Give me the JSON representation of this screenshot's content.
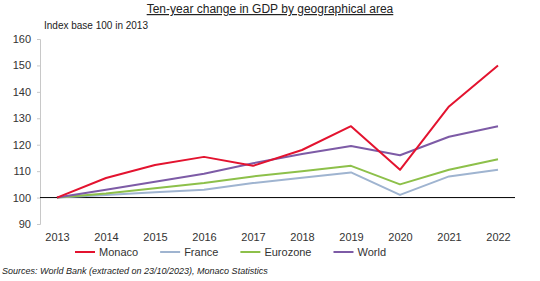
{
  "chart_data": {
    "type": "line",
    "title": "Ten-year change in GDP by geographical area",
    "subtitle": "Index base 100 in 2013",
    "source": "Sources: World Bank (extracted on 23/10/2023), Monaco Statistics",
    "categories": [
      "2013",
      "2014",
      "2015",
      "2016",
      "2017",
      "2018",
      "2019",
      "2020",
      "2021",
      "2022"
    ],
    "series": [
      {
        "name": "Monaco",
        "color": "#e3132f",
        "values": [
          100,
          107.4,
          112.3,
          115.4,
          112,
          118,
          127,
          110.5,
          134.5,
          150
        ]
      },
      {
        "name": "France",
        "color": "#9fb4d0",
        "values": [
          100,
          101,
          102,
          103,
          105.5,
          107.5,
          109.5,
          101,
          108,
          110.5
        ]
      },
      {
        "name": "Eurozone",
        "color": "#8dc04a",
        "values": [
          100,
          101.5,
          103.5,
          105.5,
          108,
          110,
          112,
          105,
          110.5,
          114.5
        ]
      },
      {
        "name": "World",
        "color": "#7d5ba6",
        "values": [
          100,
          103,
          106,
          109,
          113,
          116.5,
          119.5,
          116,
          123,
          127
        ]
      }
    ],
    "ylim": [
      90,
      160
    ],
    "yticks": [
      90,
      100,
      110,
      120,
      130,
      140,
      150,
      160
    ],
    "grid": false,
    "legend": "bottom"
  }
}
